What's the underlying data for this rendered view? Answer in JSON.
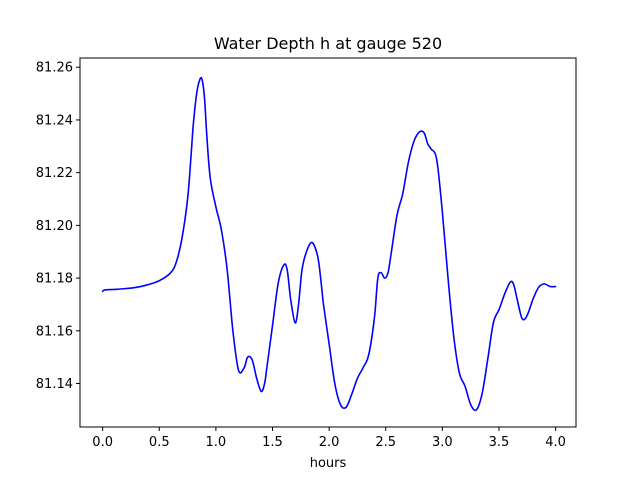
{
  "chart_data": {
    "type": "line",
    "title": "Water Depth h at gauge 520",
    "xlabel": "hours",
    "ylabel": "",
    "xlim": [
      -0.2,
      4.18
    ],
    "ylim": [
      81.1235,
      81.2635
    ],
    "xticks": [
      0.0,
      0.5,
      1.0,
      1.5,
      2.0,
      2.5,
      3.0,
      3.5,
      4.0
    ],
    "xtick_labels": [
      "0.0",
      "0.5",
      "1.0",
      "1.5",
      "2.0",
      "2.5",
      "3.0",
      "3.5",
      "4.0"
    ],
    "yticks": [
      81.14,
      81.16,
      81.18,
      81.2,
      81.22,
      81.24,
      81.26
    ],
    "ytick_labels": [
      "81.14",
      "81.16",
      "81.18",
      "81.20",
      "81.22",
      "81.24",
      "81.26"
    ],
    "grid": false,
    "series": [
      {
        "color": "#0000ff",
        "x": [
          0.0,
          0.02,
          0.1,
          0.2,
          0.3,
          0.4,
          0.5,
          0.6,
          0.65,
          0.7,
          0.75,
          0.78,
          0.8,
          0.83,
          0.86,
          0.88,
          0.9,
          0.92,
          0.95,
          1.0,
          1.05,
          1.1,
          1.15,
          1.2,
          1.25,
          1.28,
          1.32,
          1.36,
          1.4,
          1.43,
          1.45,
          1.5,
          1.55,
          1.6,
          1.63,
          1.66,
          1.7,
          1.73,
          1.76,
          1.8,
          1.85,
          1.9,
          1.93,
          1.95,
          2.0,
          2.05,
          2.1,
          2.15,
          2.2,
          2.25,
          2.3,
          2.35,
          2.4,
          2.43,
          2.46,
          2.49,
          2.52,
          2.55,
          2.6,
          2.65,
          2.7,
          2.75,
          2.8,
          2.84,
          2.87,
          2.9,
          2.95,
          3.0,
          3.05,
          3.1,
          3.15,
          3.2,
          3.25,
          3.3,
          3.35,
          3.4,
          3.45,
          3.5,
          3.55,
          3.6,
          3.63,
          3.66,
          3.7,
          3.73,
          3.76,
          3.8,
          3.85,
          3.9,
          3.95,
          4.0
        ],
        "y": [
          81.175,
          81.1755,
          81.1757,
          81.176,
          81.1765,
          81.1775,
          81.179,
          81.182,
          81.186,
          81.195,
          81.21,
          81.226,
          81.238,
          81.25,
          81.2555,
          81.255,
          81.248,
          81.234,
          81.218,
          81.207,
          81.198,
          81.183,
          81.16,
          81.145,
          81.146,
          81.15,
          81.149,
          81.142,
          81.137,
          81.14,
          81.146,
          81.162,
          81.178,
          81.185,
          81.183,
          81.172,
          81.163,
          81.17,
          81.183,
          81.19,
          81.1935,
          81.188,
          81.178,
          81.17,
          81.155,
          81.14,
          81.132,
          81.131,
          81.136,
          81.142,
          81.146,
          81.151,
          81.165,
          81.18,
          81.182,
          81.18,
          81.182,
          81.19,
          81.204,
          81.212,
          81.224,
          81.232,
          81.2355,
          81.235,
          81.231,
          81.229,
          81.225,
          81.205,
          81.18,
          81.158,
          81.144,
          81.139,
          81.132,
          81.13,
          81.136,
          81.149,
          81.163,
          81.168,
          81.174,
          81.1785,
          81.1775,
          81.172,
          81.165,
          81.1645,
          81.167,
          81.172,
          81.1765,
          81.1778,
          81.1768,
          81.1768
        ]
      }
    ]
  }
}
